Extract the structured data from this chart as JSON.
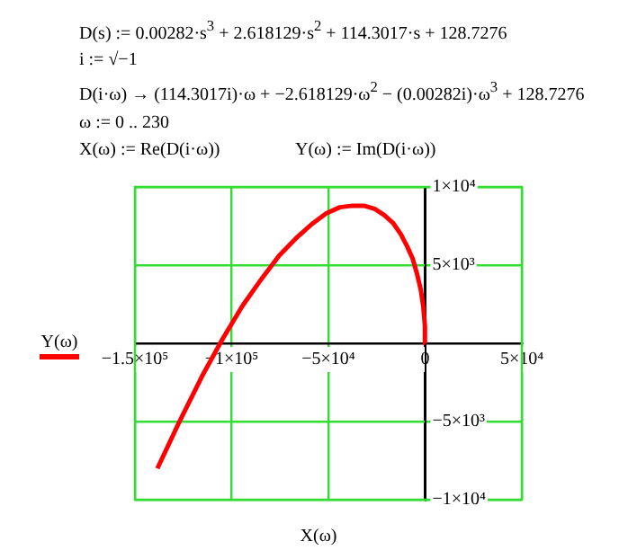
{
  "chart_data": {
    "type": "line",
    "annotations": [
      "D(s) := 0.00282·s$^{3}$ + 2.618129·s$^{2}$ + 114.3017·s + 128.7276",
      "i := √−1",
      "D(i·ω) → (114.3017i)·ω + −2.618129·ω$^{2}$ − (0.00282i)·ω$^{3}$ + 128.7276",
      "ω := 0 .. 230",
      "X(ω) := Re(D(i·ω))",
      "Y(ω) := Im(D(i·ω))"
    ],
    "xlabel": "X(ω)",
    "series": [
      {
        "name": "Y(ω)",
        "color": "#ff0000",
        "x": [
          0,
          -100,
          -900,
          -2200,
          -4100,
          -6400,
          -9300,
          -12700,
          -16600,
          -21100,
          -26100,
          -31600,
          -37600,
          -44100,
          -51200,
          -58800,
          -66900,
          -75500,
          -84700,
          -94400,
          -104600,
          -115300,
          -126600,
          -138400
        ],
        "values": [
          0,
          1100,
          2300,
          3400,
          4400,
          5400,
          6200,
          7000,
          7700,
          8200,
          8600,
          8800,
          8800,
          8700,
          8300,
          7600,
          6700,
          5600,
          4100,
          2400,
          300,
          -2100,
          -4900,
          -8000
        ]
      }
    ],
    "xlim": [
      -150000,
      50000
    ],
    "xticks": [
      {
        "value": -150000,
        "label": "−1.5×10⁵"
      },
      {
        "value": -100000,
        "label": "−1×10⁵"
      },
      {
        "value": -50000,
        "label": "−5×10⁴"
      },
      0,
      {
        "value": 50000,
        "label": "5×10⁴"
      }
    ],
    "ylim": [
      -10000,
      10000
    ],
    "yticks": [
      {
        "value": -10000,
        "label": "−1×10⁴"
      },
      {
        "value": -5000,
        "label": "−5×10³"
      },
      {
        "value": 0,
        "label": null
      },
      {
        "value": 5000,
        "label": "5×10³"
      },
      {
        "value": 10000,
        "label": "1×10⁴"
      }
    ],
    "grid": true,
    "legend": "left",
    "marker": "none",
    "line_style": "solid"
  }
}
